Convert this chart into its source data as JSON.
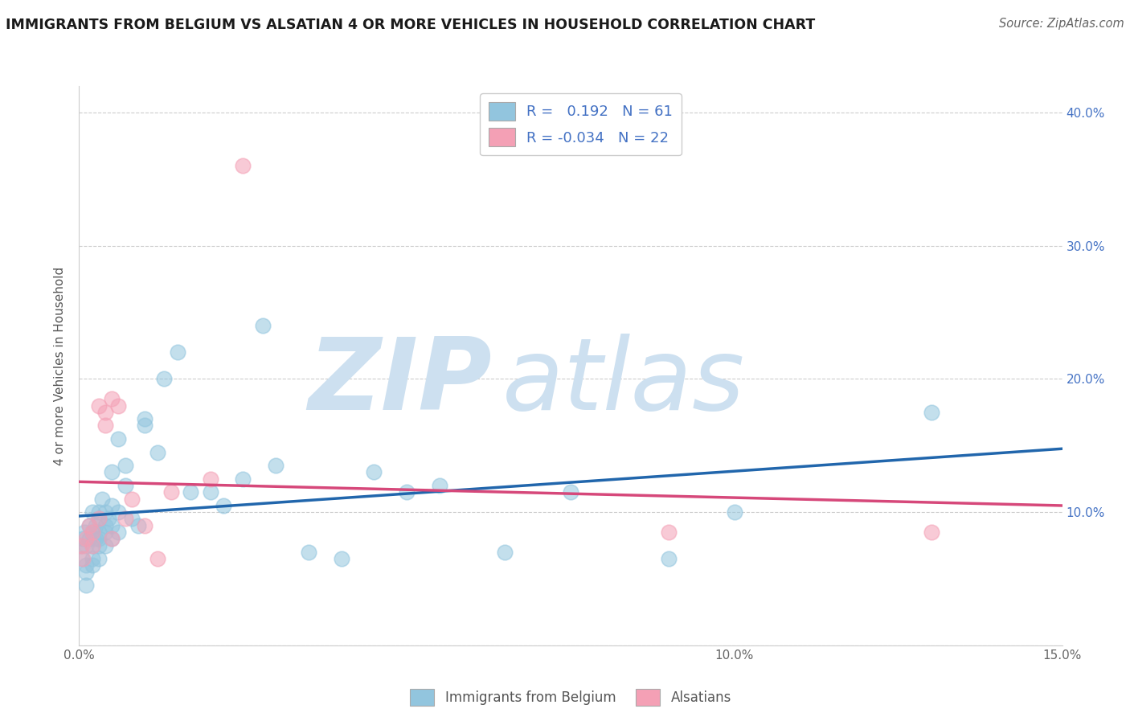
{
  "title": "IMMIGRANTS FROM BELGIUM VS ALSATIAN 4 OR MORE VEHICLES IN HOUSEHOLD CORRELATION CHART",
  "source": "Source: ZipAtlas.com",
  "ylabel": "4 or more Vehicles in Household",
  "xlim": [
    0.0,
    0.15
  ],
  "ylim": [
    0.0,
    0.42
  ],
  "xticks": [
    0.0,
    0.025,
    0.05,
    0.075,
    0.1,
    0.125,
    0.15
  ],
  "xtick_labels": [
    "0.0%",
    "",
    "",
    "",
    "10.0%",
    "",
    "15.0%"
  ],
  "yticks": [
    0.0,
    0.1,
    0.2,
    0.3,
    0.4
  ],
  "ytick_labels_right": [
    "",
    "10.0%",
    "20.0%",
    "30.0%",
    "40.0%"
  ],
  "grid_color": "#cccccc",
  "watermark_zip": "ZIP",
  "watermark_atlas": "atlas",
  "watermark_color": "#cde0f0",
  "legend1_label": "Immigrants from Belgium",
  "legend2_label": "Alsatians",
  "R1": "0.192",
  "N1": "61",
  "R2": "-0.034",
  "N2": "22",
  "blue_color": "#92c5de",
  "blue_edge_color": "#92c5de",
  "blue_line_color": "#2166ac",
  "pink_color": "#f4a0b5",
  "pink_edge_color": "#f4a0b5",
  "pink_line_color": "#d6487a",
  "marker_size": 180,
  "marker_alpha": 0.55,
  "belgium_x": [
    0.0002,
    0.0004,
    0.0006,
    0.0008,
    0.001,
    0.001,
    0.001,
    0.001,
    0.0015,
    0.0015,
    0.002,
    0.002,
    0.002,
    0.002,
    0.002,
    0.0025,
    0.0025,
    0.003,
    0.003,
    0.003,
    0.003,
    0.003,
    0.003,
    0.0035,
    0.004,
    0.004,
    0.004,
    0.004,
    0.0045,
    0.005,
    0.005,
    0.005,
    0.005,
    0.006,
    0.006,
    0.006,
    0.007,
    0.007,
    0.008,
    0.009,
    0.01,
    0.01,
    0.012,
    0.013,
    0.015,
    0.017,
    0.02,
    0.022,
    0.025,
    0.028,
    0.03,
    0.035,
    0.04,
    0.045,
    0.05,
    0.055,
    0.065,
    0.075,
    0.09,
    0.1,
    0.13
  ],
  "belgium_y": [
    0.075,
    0.065,
    0.08,
    0.085,
    0.06,
    0.075,
    0.055,
    0.045,
    0.08,
    0.09,
    0.065,
    0.075,
    0.085,
    0.1,
    0.06,
    0.09,
    0.08,
    0.085,
    0.095,
    0.075,
    0.1,
    0.08,
    0.065,
    0.11,
    0.09,
    0.085,
    0.1,
    0.075,
    0.095,
    0.13,
    0.105,
    0.09,
    0.08,
    0.1,
    0.155,
    0.085,
    0.135,
    0.12,
    0.095,
    0.09,
    0.17,
    0.165,
    0.145,
    0.2,
    0.22,
    0.115,
    0.115,
    0.105,
    0.125,
    0.24,
    0.135,
    0.07,
    0.065,
    0.13,
    0.115,
    0.12,
    0.07,
    0.115,
    0.065,
    0.1,
    0.175
  ],
  "alsatian_x": [
    0.0004,
    0.0006,
    0.001,
    0.0015,
    0.002,
    0.002,
    0.003,
    0.003,
    0.004,
    0.004,
    0.005,
    0.005,
    0.006,
    0.007,
    0.008,
    0.01,
    0.012,
    0.014,
    0.02,
    0.025,
    0.09,
    0.13
  ],
  "alsatian_y": [
    0.075,
    0.065,
    0.08,
    0.09,
    0.085,
    0.075,
    0.18,
    0.095,
    0.175,
    0.165,
    0.185,
    0.08,
    0.18,
    0.095,
    0.11,
    0.09,
    0.065,
    0.115,
    0.125,
    0.36,
    0.085,
    0.085
  ]
}
